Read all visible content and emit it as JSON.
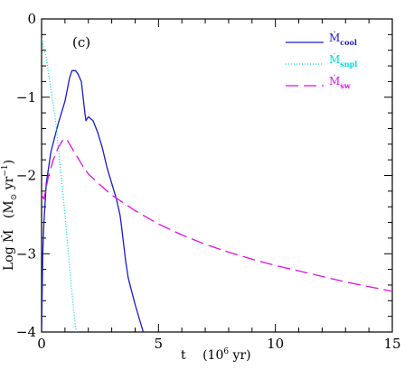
{
  "chart_data": {
    "type": "line",
    "panel_label": "(c)",
    "xlabel": {
      "main": "t",
      "unit_open": "(10",
      "unit_exp": "6",
      "unit_close": " yr)"
    },
    "ylabel": {
      "main": "Log Ṁ",
      "unit_open": "(M",
      "unit_sym": "⊙",
      "unit_mid": " yr",
      "unit_exp": "−1",
      "unit_close": ")"
    },
    "xlim": [
      0,
      15
    ],
    "ylim": [
      -4,
      0
    ],
    "x_ticks": [
      0,
      5,
      10,
      15
    ],
    "x_tick_labels": [
      "0",
      "5",
      "10",
      "15"
    ],
    "y_ticks": [
      0,
      -1,
      -2,
      -3,
      -4
    ],
    "y_tick_labels": [
      "0",
      "−1",
      "−2",
      "−3",
      "−4"
    ],
    "grid": false,
    "legend_position": "top-right",
    "series": [
      {
        "name": "Ṁ",
        "sub": "cool",
        "color": "#1a1ad0",
        "dash": "",
        "x": [
          0.0,
          0.05,
          0.1,
          0.2,
          0.4,
          0.7,
          1.0,
          1.2,
          1.3,
          1.45,
          1.55,
          1.7,
          1.85,
          1.9,
          2.0,
          2.2,
          2.4,
          2.6,
          2.8,
          3.0,
          3.2,
          3.35,
          3.4,
          3.5,
          3.6,
          3.7,
          3.8,
          4.0,
          4.2,
          4.35
        ],
        "y": [
          -4.0,
          -3.0,
          -2.6,
          -2.1,
          -1.7,
          -1.35,
          -1.05,
          -0.75,
          -0.66,
          -0.66,
          -0.7,
          -0.8,
          -1.2,
          -1.3,
          -1.25,
          -1.3,
          -1.45,
          -1.65,
          -1.9,
          -2.1,
          -2.3,
          -2.5,
          -2.6,
          -2.85,
          -3.1,
          -3.3,
          -3.42,
          -3.65,
          -3.85,
          -4.0
        ]
      },
      {
        "name": "Ṁ",
        "sub": "snpl",
        "color": "#00d8d8",
        "dash": "1,2",
        "x": [
          0.0,
          0.2,
          0.4,
          0.6,
          0.8,
          1.0,
          1.15,
          1.3,
          1.42,
          1.48
        ],
        "y": [
          -0.25,
          -0.5,
          -0.9,
          -1.3,
          -1.9,
          -2.5,
          -3.0,
          -3.5,
          -3.85,
          -4.0
        ]
      },
      {
        "name": "Ṁ",
        "sub": "sw",
        "color": "#e010e0",
        "dash": "14,6",
        "x": [
          0.0,
          0.1,
          0.3,
          0.5,
          0.7,
          0.9,
          1.0,
          1.1,
          1.2,
          1.4,
          1.6,
          1.8,
          2.0,
          2.5,
          3.0,
          4.0,
          5.0,
          6.0,
          7.0,
          8.0,
          9.0,
          10.0,
          11.0,
          12.0,
          13.0,
          14.0,
          15.0
        ],
        "y": [
          -2.25,
          -2.3,
          -2.0,
          -1.8,
          -1.65,
          -1.55,
          -1.53,
          -1.55,
          -1.6,
          -1.7,
          -1.8,
          -1.9,
          -1.98,
          -2.12,
          -2.25,
          -2.45,
          -2.62,
          -2.76,
          -2.88,
          -2.98,
          -3.07,
          -3.15,
          -3.22,
          -3.29,
          -3.36,
          -3.42,
          -3.48
        ]
      }
    ]
  }
}
